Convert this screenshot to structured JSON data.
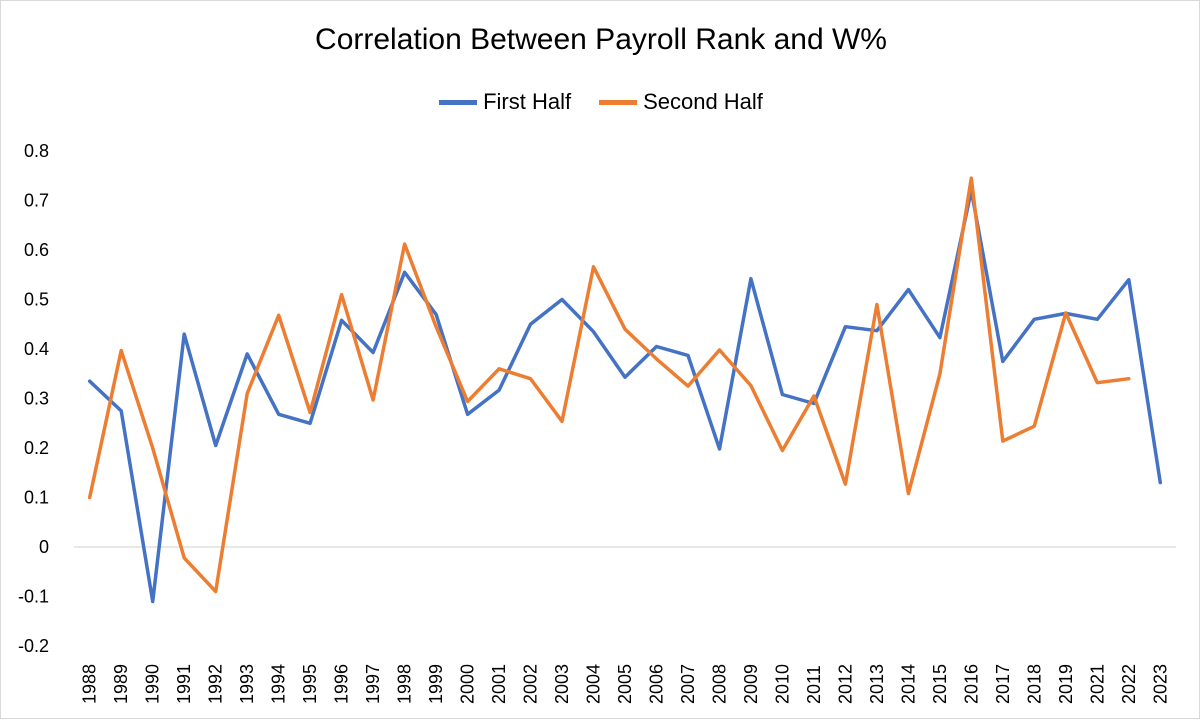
{
  "chart_data": {
    "type": "line",
    "title": "Correlation Between Payroll Rank and W%",
    "xlabel": "",
    "ylabel": "",
    "ylim": [
      -0.2,
      0.8
    ],
    "yticks": [
      "0.8",
      "0.7",
      "0.6",
      "0.5",
      "0.4",
      "0.3",
      "0.2",
      "0.1",
      "0",
      "-0.1",
      "-0.2"
    ],
    "ytick_values": [
      0.8,
      0.7,
      0.6,
      0.5,
      0.4,
      0.3,
      0.2,
      0.1,
      0,
      -0.1,
      -0.2
    ],
    "categories": [
      "1988",
      "1989",
      "1990",
      "1991",
      "1992",
      "1993",
      "1994",
      "1995",
      "1996",
      "1997",
      "1998",
      "1999",
      "2000",
      "2001",
      "2002",
      "2003",
      "2004",
      "2005",
      "2006",
      "2007",
      "2008",
      "2009",
      "2010",
      "2011",
      "2012",
      "2013",
      "2014",
      "2015",
      "2016",
      "2017",
      "2018",
      "2019",
      "2021",
      "2022",
      "2023"
    ],
    "legend_position": "top-center",
    "grid": false,
    "series": [
      {
        "name": "First Half",
        "color": "#4472C4",
        "values": [
          0.335,
          0.275,
          -0.11,
          0.43,
          0.205,
          0.39,
          0.268,
          0.25,
          0.458,
          0.393,
          0.555,
          0.47,
          0.268,
          0.317,
          0.45,
          0.5,
          0.435,
          0.343,
          0.405,
          0.387,
          0.198,
          0.542,
          0.308,
          0.29,
          0.445,
          0.437,
          0.52,
          0.423,
          0.72,
          0.375,
          0.46,
          0.472,
          0.46,
          0.54,
          0.13
        ]
      },
      {
        "name": "Second Half",
        "color": "#ED7D31",
        "values": [
          0.1,
          0.397,
          0.2,
          -0.022,
          -0.09,
          0.31,
          0.468,
          0.272,
          0.51,
          0.297,
          0.612,
          0.445,
          0.294,
          0.36,
          0.34,
          0.254,
          0.566,
          0.44,
          0.38,
          0.325,
          0.398,
          0.326,
          0.195,
          0.305,
          0.127,
          0.49,
          0.108,
          0.35,
          0.745,
          0.214,
          0.244,
          0.473,
          0.332,
          0.34,
          null
        ]
      }
    ]
  }
}
